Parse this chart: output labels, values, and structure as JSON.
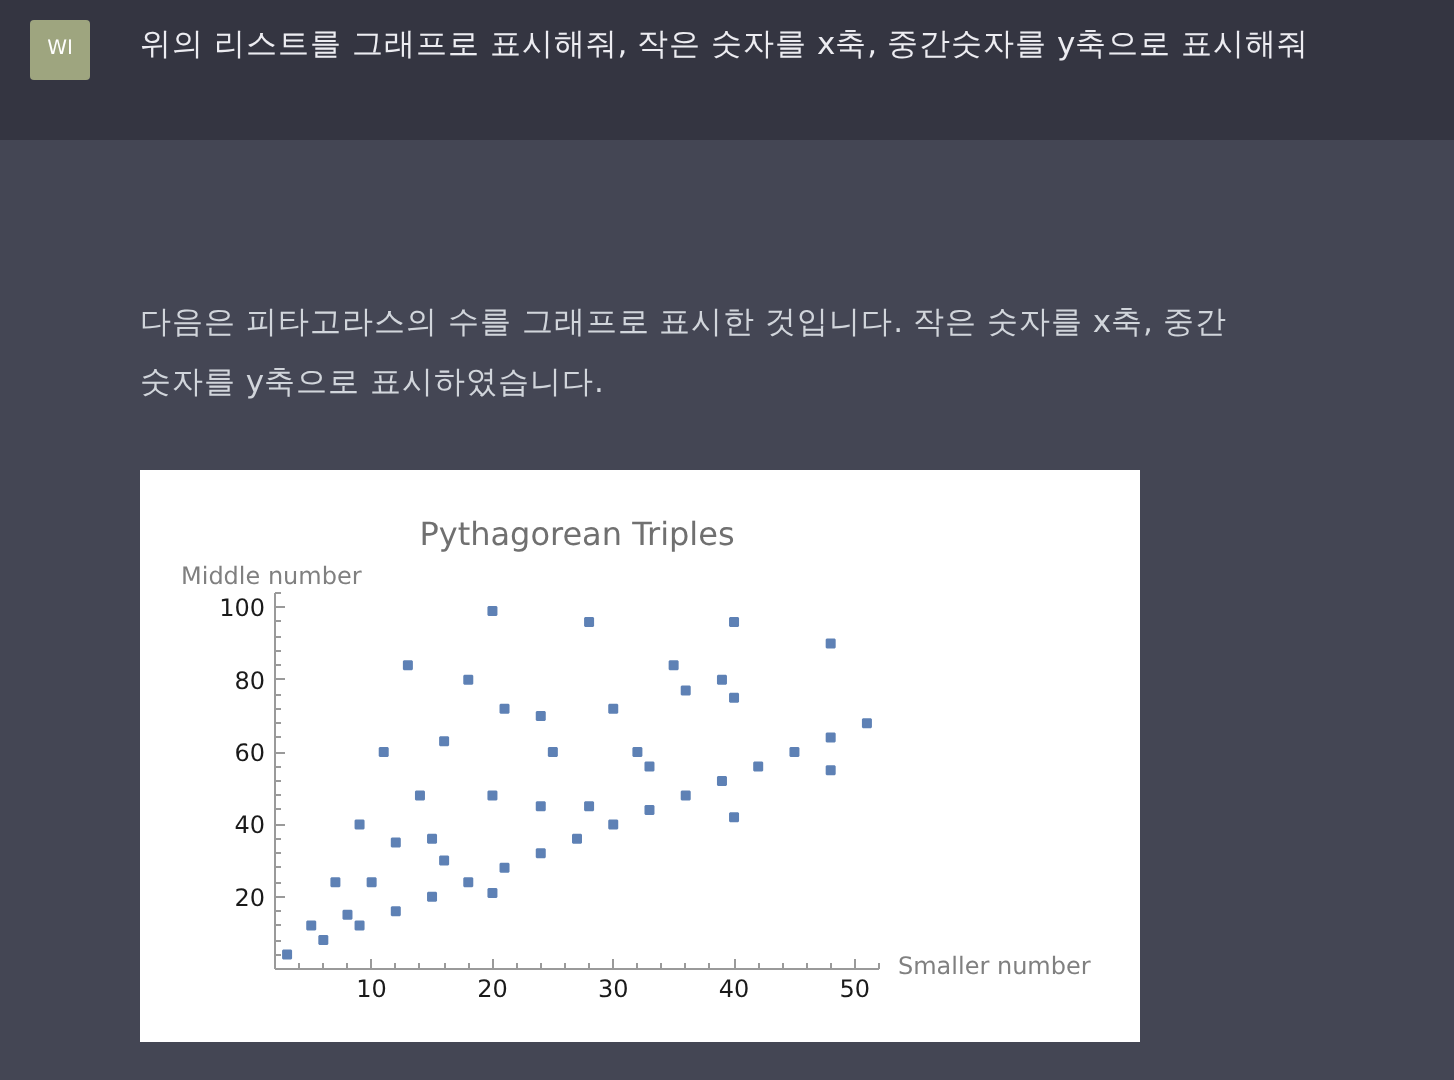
{
  "chart_data": {
    "type": "scatter",
    "title": "Pythagorean Triples",
    "xlabel": "Smaller number",
    "ylabel": "Middle number",
    "annotations": [
      "WI",
      "위의 리스트를 그래프로 표시해줘, 작은 숫자를 x축, 중간숫자를 y축으로 표시해줘",
      "다음은 피타고라스의 수를 그래프로 표시한 것입니다. 작은 숫자를 x축, 중간 숫자를 y축으로 표시하였습니다."
    ],
    "x": [
      3,
      5,
      6,
      7,
      8,
      9,
      9,
      10,
      11,
      12,
      12,
      13,
      14,
      15,
      15,
      16,
      16,
      18,
      18,
      20,
      20,
      20,
      21,
      21,
      24,
      24,
      24,
      25,
      27,
      28,
      28,
      30,
      30,
      32,
      33,
      33,
      35,
      36,
      36,
      39,
      39,
      40,
      40,
      40,
      42,
      45,
      48,
      48,
      48,
      51
    ],
    "values": [
      4,
      12,
      8,
      24,
      15,
      12,
      40,
      24,
      60,
      16,
      35,
      84,
      48,
      20,
      36,
      30,
      63,
      24,
      80,
      21,
      48,
      99,
      28,
      72,
      32,
      45,
      70,
      60,
      36,
      45,
      96,
      40,
      72,
      60,
      44,
      56,
      84,
      48,
      77,
      52,
      80,
      42,
      75,
      96,
      56,
      60,
      55,
      64,
      90,
      68
    ],
    "color": "#5e81b5",
    "marker": "square",
    "xlim": [
      2,
      52
    ],
    "ylim": [
      0,
      104
    ],
    "xticks": [
      10,
      20,
      30,
      40,
      50
    ],
    "yticks": [
      20,
      40,
      60,
      80,
      100
    ],
    "grid": false
  }
}
